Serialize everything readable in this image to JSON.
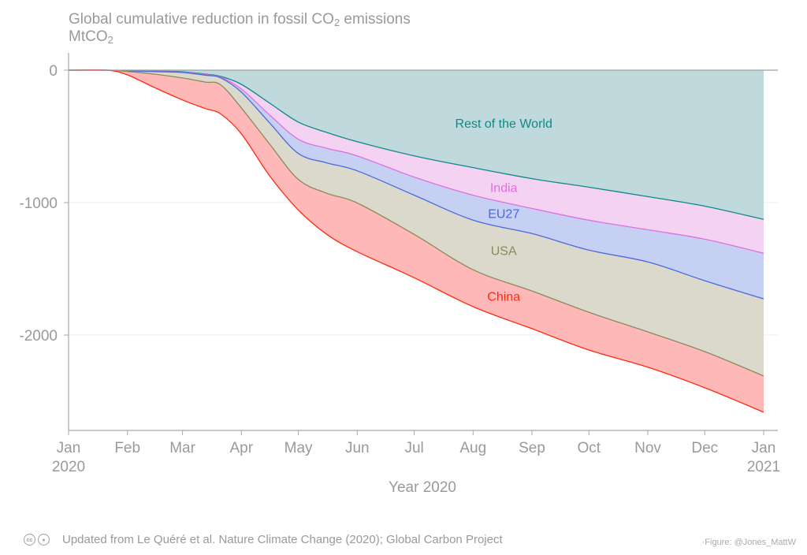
{
  "title": {
    "line1_pre": "Global cumulative reduction in fossil CO",
    "line1_sub": "2",
    "line1_post": " emissions",
    "unit_pre": "MtCO",
    "unit_sub": "2"
  },
  "footer": {
    "license_icons": [
      "cc-icon",
      "by-attribution-icon"
    ],
    "source": "Updated from Le Quéré et al. Nature Climate Change (2020); Global Carbon Project",
    "credit": "·Figure: @Jones_MattW"
  },
  "chart_data": {
    "type": "area",
    "stacked": true,
    "title": "Global cumulative reduction in fossil CO2 emissions",
    "ylabel": "MtCO2",
    "xlabel": "Year 2020",
    "ylim": [
      -2720,
      130
    ],
    "yticks": [
      0,
      -1000,
      -2000
    ],
    "ytick_labels": [
      "0",
      "-1000",
      "-2000"
    ],
    "xlim_days": [
      0,
      366
    ],
    "xticks_days": [
      0,
      31,
      60,
      91,
      121,
      152,
      182,
      213,
      244,
      274,
      305,
      335,
      366
    ],
    "xtick_labels": [
      [
        "Jan",
        "2020"
      ],
      [
        "Feb"
      ],
      [
        "Mar"
      ],
      [
        "Apr"
      ],
      [
        "May"
      ],
      [
        "Jun"
      ],
      [
        "Jul"
      ],
      [
        "Aug"
      ],
      [
        "Sep"
      ],
      [
        "Oct"
      ],
      [
        "Nov"
      ],
      [
        "Dec"
      ],
      [
        "Jan",
        "2021"
      ]
    ],
    "grid": "horizontal",
    "x_days": [
      0,
      20,
      31,
      45,
      60,
      72,
      80,
      91,
      106,
      121,
      136,
      152,
      182,
      213,
      244,
      274,
      305,
      335,
      366
    ],
    "note": "values are cumulative stacked boundaries (MtCO2): each series' boundary line from top (Rest of the World) to bottom (China)",
    "series": [
      {
        "name": "Rest of the World",
        "color": "#0e8a8a",
        "fill": "#bfd9dc",
        "values": [
          0,
          0,
          -3,
          -7,
          -12,
          -30,
          -47,
          -107,
          -250,
          -392,
          -470,
          -540,
          -647,
          -736,
          -819,
          -884,
          -955,
          -1027,
          -1127
        ]
      },
      {
        "name": "India",
        "color": "#e06fe0",
        "fill": "#f3d3f1",
        "values": [
          0,
          0,
          -4,
          -9,
          -15,
          -34,
          -52,
          -142,
          -340,
          -522,
          -590,
          -647,
          -807,
          -944,
          -1044,
          -1133,
          -1205,
          -1276,
          -1383
        ]
      },
      {
        "name": "EU27",
        "color": "#4a68e0",
        "fill": "#c6d0f3",
        "values": [
          0,
          0,
          -5,
          -11,
          -18,
          -38,
          -58,
          -166,
          -400,
          -629,
          -700,
          -760,
          -944,
          -1133,
          -1234,
          -1359,
          -1448,
          -1590,
          -1727
        ]
      },
      {
        "name": "USA",
        "color": "#8a8a5a",
        "fill": "#dad9cb",
        "values": [
          0,
          0,
          -10,
          -30,
          -59,
          -90,
          -110,
          -285,
          -560,
          -825,
          -930,
          -1003,
          -1240,
          -1507,
          -1667,
          -1828,
          -1976,
          -2125,
          -2309
        ]
      },
      {
        "name": "China",
        "color": "#ff2a10",
        "fill": "#ffb8b8",
        "values": [
          0,
          0,
          -36,
          -130,
          -225,
          -290,
          -330,
          -481,
          -800,
          -1056,
          -1240,
          -1371,
          -1567,
          -1786,
          -1952,
          -2113,
          -2243,
          -2398,
          -2582
        ]
      }
    ],
    "labels": [
      {
        "text": "Rest of the World",
        "series": "Rest of the World",
        "day": 225,
        "value": -400
      },
      {
        "text": "India",
        "series": "India",
        "day": 225,
        "value": -885
      },
      {
        "text": "EU27",
        "series": "EU27",
        "day": 225,
        "value": -1080
      },
      {
        "text": "USA",
        "series": "USA",
        "day": 225,
        "value": -1360
      },
      {
        "text": "China",
        "series": "China",
        "day": 225,
        "value": -1705
      }
    ]
  }
}
